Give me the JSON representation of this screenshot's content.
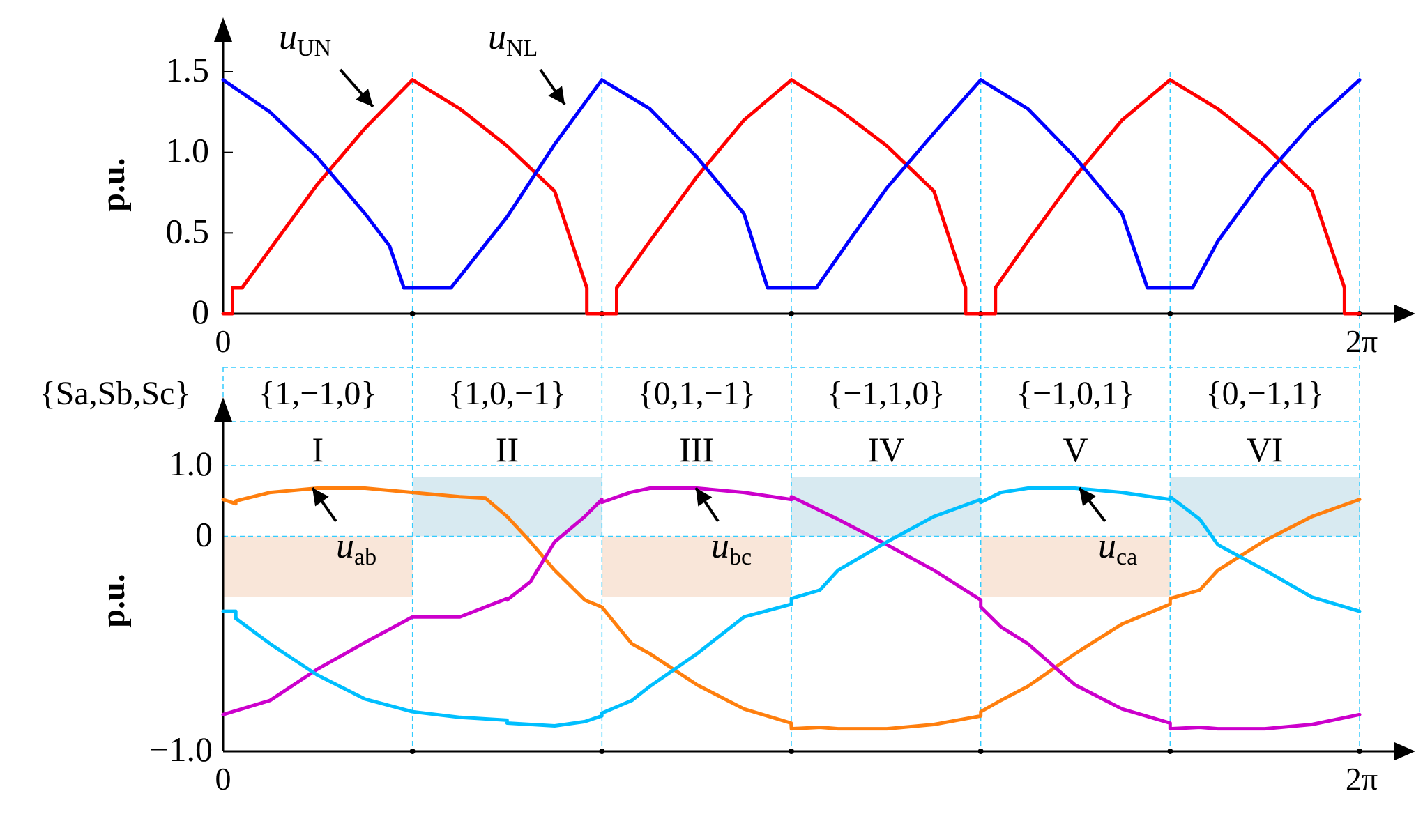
{
  "chart_data": [
    {
      "type": "line",
      "xlabel": "",
      "ylabel": "p.u.",
      "xlim": [
        0,
        6.2832
      ],
      "ylim": [
        0,
        1.5
      ],
      "x_tick_labels": [
        "0",
        "2π"
      ],
      "y_tick_labels": [
        "0",
        "0.5",
        "1.0",
        "1.5"
      ],
      "colors": {
        "u_UN": "#ff0000",
        "u_NL": "#0000ff"
      },
      "series": [
        {
          "name": "uUN",
          "label_main": "u",
          "label_sub": "UN",
          "color": "#ff0000",
          "x": [
            0,
            0.052,
            0.052,
            0.105,
            0.26,
            0.52,
            0.785,
            1.047,
            1.31,
            1.57,
            1.833,
            2.011,
            2.011,
            2.094,
            2.094,
            2.176,
            2.176,
            2.36,
            2.62,
            2.88,
            3.142,
            3.4,
            3.67,
            3.93,
            4.105,
            4.105,
            4.189,
            4.189,
            4.27,
            4.27,
            4.45,
            4.71,
            4.97,
            5.236,
            5.5,
            5.76,
            6.02,
            6.2,
            6.2,
            6.2832
          ],
          "y": [
            0,
            0,
            0.16,
            0.16,
            0.4,
            0.8,
            1.15,
            1.45,
            1.27,
            1.04,
            0.76,
            0.16,
            0,
            0,
            0,
            0,
            0.16,
            0.45,
            0.85,
            1.2,
            1.45,
            1.27,
            1.04,
            0.76,
            0.16,
            0,
            0,
            0,
            0,
            0.16,
            0.45,
            0.85,
            1.2,
            1.45,
            1.27,
            1.04,
            0.76,
            0.16,
            0,
            0
          ]
        },
        {
          "name": "uNL",
          "label_main": "u",
          "label_sub": "NL",
          "color": "#0000ff",
          "x": [
            0,
            0.26,
            0.52,
            0.785,
            0.92,
            1.0,
            1.13,
            1.26,
            1.57,
            1.833,
            2.094,
            2.36,
            2.62,
            2.88,
            3.01,
            3.28,
            3.46,
            3.67,
            3.93,
            4.189,
            4.45,
            4.71,
            4.97,
            5.11,
            5.36,
            5.5,
            5.76,
            6.02,
            6.2832
          ],
          "y": [
            1.45,
            1.25,
            0.97,
            0.62,
            0.42,
            0.16,
            0.16,
            0.16,
            0.6,
            1.05,
            1.45,
            1.27,
            0.97,
            0.62,
            0.16,
            0.16,
            0.45,
            0.78,
            1.12,
            1.45,
            1.27,
            0.97,
            0.62,
            0.16,
            0.16,
            0.45,
            0.85,
            1.18,
            1.45
          ]
        }
      ],
      "annotations": [
        "uUN",
        "uNL"
      ]
    },
    {
      "type": "line",
      "xlabel": "",
      "ylabel": "p.u.",
      "xlim": [
        0,
        6.2832
      ],
      "ylim": [
        -1.0,
        1.0
      ],
      "x_tick_labels": [
        "0",
        "2π"
      ],
      "y_tick_labels": [
        "−1.0",
        "0",
        "1.0"
      ],
      "state_header_label": "{Sa,Sb,Sc}",
      "switch_states": [
        "{1,−1,0}",
        "{1,0,−1}",
        "{0,1,−1}",
        "{−1,1,0}",
        "{−1,0,1}",
        "{0,−1,1}"
      ],
      "sectors": [
        "I",
        "II",
        "III",
        "IV",
        "V",
        "VI"
      ],
      "shaded_regions": [
        {
          "sector": "I",
          "color": "#f9e6d9",
          "y": [
            -0.86,
            0
          ]
        },
        {
          "sector": "II",
          "color": "#d8eaf1",
          "y": [
            0,
            0.84
          ]
        },
        {
          "sector": "III",
          "color": "#f9e6d9",
          "y": [
            -0.86,
            0
          ]
        },
        {
          "sector": "IV",
          "color": "#d8eaf1",
          "y": [
            0,
            0.84
          ]
        },
        {
          "sector": "V",
          "color": "#f9e6d9",
          "y": [
            -0.86,
            0
          ]
        },
        {
          "sector": "VI",
          "color": "#d8eaf1",
          "y": [
            0,
            0.84
          ]
        }
      ],
      "series": [
        {
          "name": "uab",
          "label_main": "u",
          "label_sub": "ab",
          "color": "#ff7f0e",
          "x": [
            0,
            0.07,
            0.07,
            0.26,
            0.52,
            0.785,
            1.047,
            1.308,
            1.45,
            1.57,
            1.7,
            1.833,
            2.0,
            2.094,
            2.094,
            2.26,
            2.36,
            2.62,
            2.88,
            3.14,
            3.142,
            3.3,
            3.4,
            3.67,
            3.93,
            4.189,
            4.189,
            4.3,
            4.45,
            4.71,
            4.97,
            5.236,
            5.236,
            5.4,
            5.5,
            5.76,
            6.02,
            6.2832
          ],
          "y": [
            0.76,
            0.73,
            0.75,
            0.81,
            0.84,
            0.84,
            0.81,
            0.78,
            0.77,
            0.64,
            0.46,
            0.26,
            0.05,
            0,
            0,
            -0.26,
            -0.33,
            -0.55,
            -0.72,
            -0.82,
            -0.86,
            -0.85,
            -0.86,
            -0.86,
            -0.83,
            -0.77,
            -0.74,
            -0.66,
            -0.56,
            -0.33,
            -0.12,
            0.02,
            0.06,
            0.12,
            0.26,
            0.47,
            0.64,
            0.76
          ]
        },
        {
          "name": "ubc",
          "label_main": "u",
          "label_sub": "bc",
          "color": "#cc00cc",
          "x": [
            0,
            0.26,
            0.52,
            0.785,
            1.047,
            1.31,
            1.57,
            1.57,
            1.7,
            1.833,
            2.0,
            2.094,
            2.094,
            2.25,
            2.36,
            2.62,
            2.88,
            3.142,
            3.142,
            3.4,
            3.67,
            3.93,
            4.189,
            4.189,
            4.3,
            4.45,
            4.71,
            4.97,
            5.236,
            5.236,
            5.4,
            5.5,
            5.76,
            6.02,
            6.2832
          ],
          "y": [
            -0.76,
            -0.66,
            -0.44,
            -0.25,
            -0.07,
            -0.07,
            0.06,
            0.05,
            0.18,
            0.46,
            0.64,
            0.76,
            0.74,
            0.81,
            0.84,
            0.84,
            0.81,
            0.76,
            0.78,
            0.62,
            0.44,
            0.26,
            0.05,
            0,
            -0.14,
            -0.26,
            -0.55,
            -0.72,
            -0.82,
            -0.86,
            -0.85,
            -0.86,
            -0.86,
            -0.83,
            -0.76
          ]
        },
        {
          "name": "uca",
          "label_main": "u",
          "label_sub": "ca",
          "color": "#00bfff",
          "x": [
            0,
            0.07,
            0.07,
            0.26,
            0.52,
            0.785,
            1.047,
            1.31,
            1.57,
            1.57,
            1.7,
            1.833,
            2.0,
            2.094,
            2.094,
            2.26,
            2.36,
            2.62,
            2.88,
            3.142,
            3.142,
            3.3,
            3.4,
            3.67,
            3.93,
            4.189,
            4.189,
            4.3,
            4.45,
            4.71,
            4.97,
            5.236,
            5.236,
            5.4,
            5.5,
            5.76,
            6.02,
            6.2832
          ],
          "y": [
            -0.03,
            -0.03,
            -0.08,
            -0.26,
            -0.48,
            -0.65,
            -0.74,
            -0.78,
            -0.8,
            -0.82,
            -0.83,
            -0.84,
            -0.81,
            -0.77,
            -0.75,
            -0.66,
            -0.56,
            -0.33,
            -0.07,
            0.02,
            0.06,
            0.12,
            0.26,
            0.46,
            0.64,
            0.76,
            0.74,
            0.81,
            0.84,
            0.84,
            0.81,
            0.76,
            0.78,
            0.62,
            0.44,
            0.26,
            0.07,
            -0.03
          ]
        }
      ],
      "annotations": [
        "uab",
        "ubc",
        "uca"
      ]
    }
  ]
}
